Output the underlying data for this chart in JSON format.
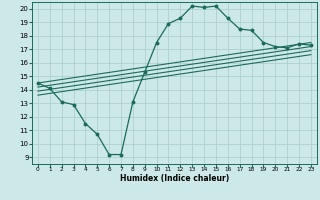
{
  "title": "",
  "xlabel": "Humidex (Indice chaleur)",
  "ylabel": "",
  "xlim": [
    -0.5,
    23.5
  ],
  "ylim": [
    8.5,
    20.5
  ],
  "yticks": [
    9,
    10,
    11,
    12,
    13,
    14,
    15,
    16,
    17,
    18,
    19,
    20
  ],
  "xticks": [
    0,
    1,
    2,
    3,
    4,
    5,
    6,
    7,
    8,
    9,
    10,
    11,
    12,
    13,
    14,
    15,
    16,
    17,
    18,
    19,
    20,
    21,
    22,
    23
  ],
  "bg_color": "#cce8e8",
  "line_color": "#1a6b5a",
  "grid_color": "#aacccc",
  "line1_x": [
    0,
    1,
    2,
    3,
    4,
    5,
    6,
    7,
    8,
    9,
    10,
    11,
    12,
    13,
    14,
    15,
    16,
    17,
    18,
    19,
    20,
    21,
    22,
    23
  ],
  "line1_y": [
    14.5,
    14.1,
    13.1,
    12.9,
    11.5,
    10.7,
    9.2,
    9.2,
    13.1,
    15.3,
    17.5,
    18.9,
    19.3,
    20.2,
    20.1,
    20.2,
    19.3,
    18.5,
    18.4,
    17.5,
    17.2,
    17.1,
    17.4,
    17.3
  ],
  "line2_x": [
    0,
    23
  ],
  "line2_y": [
    14.5,
    17.5
  ],
  "line3_x": [
    0,
    23
  ],
  "line3_y": [
    14.2,
    17.2
  ],
  "line4_x": [
    0,
    23
  ],
  "line4_y": [
    13.9,
    16.9
  ],
  "line5_x": [
    0,
    23
  ],
  "line5_y": [
    13.6,
    16.6
  ]
}
